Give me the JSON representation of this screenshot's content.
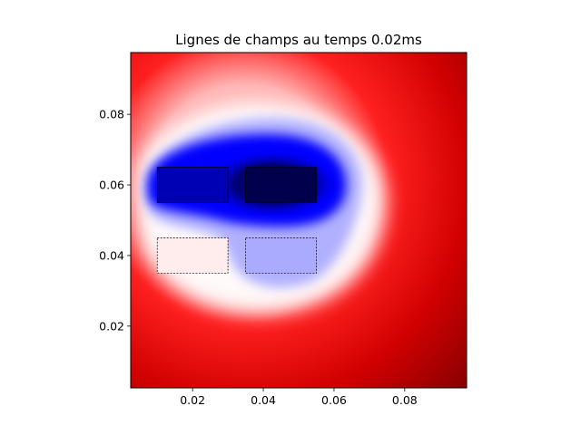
{
  "chart_data": {
    "type": "heatmap",
    "title": "Lignes de champs au temps 0.02ms",
    "xlabel": "",
    "ylabel": "",
    "xlim": [
      0.0025,
      0.0975
    ],
    "ylim": [
      0.0025,
      0.0975
    ],
    "xticks": [
      0.02,
      0.04,
      0.06,
      0.08
    ],
    "yticks": [
      0.02,
      0.04,
      0.06,
      0.08
    ],
    "xtick_labels": [
      "0.02",
      "0.04",
      "0.06",
      "0.08"
    ],
    "ytick_labels": [
      "0.02",
      "0.04",
      "0.06",
      "0.08"
    ],
    "colormap": "seismic",
    "colormap_colors": [
      "#00004c",
      "#0000ff",
      "#ffffff",
      "#ff0000",
      "#7f0000"
    ],
    "grid": false,
    "regions": [
      {
        "x": [
          0.01,
          0.03
        ],
        "y": [
          0.055,
          0.065
        ],
        "color": "#0000b4",
        "border": "solid"
      },
      {
        "x": [
          0.035,
          0.055
        ],
        "y": [
          0.055,
          0.065
        ],
        "color": "#00004c",
        "border": "solid"
      },
      {
        "x": [
          0.01,
          0.03
        ],
        "y": [
          0.035,
          0.045
        ],
        "color": "#ffecec",
        "border": "dashed"
      },
      {
        "x": [
          0.035,
          0.055
        ],
        "y": [
          0.035,
          0.045
        ],
        "color": "#aaaaff",
        "border": "dashed"
      }
    ]
  }
}
